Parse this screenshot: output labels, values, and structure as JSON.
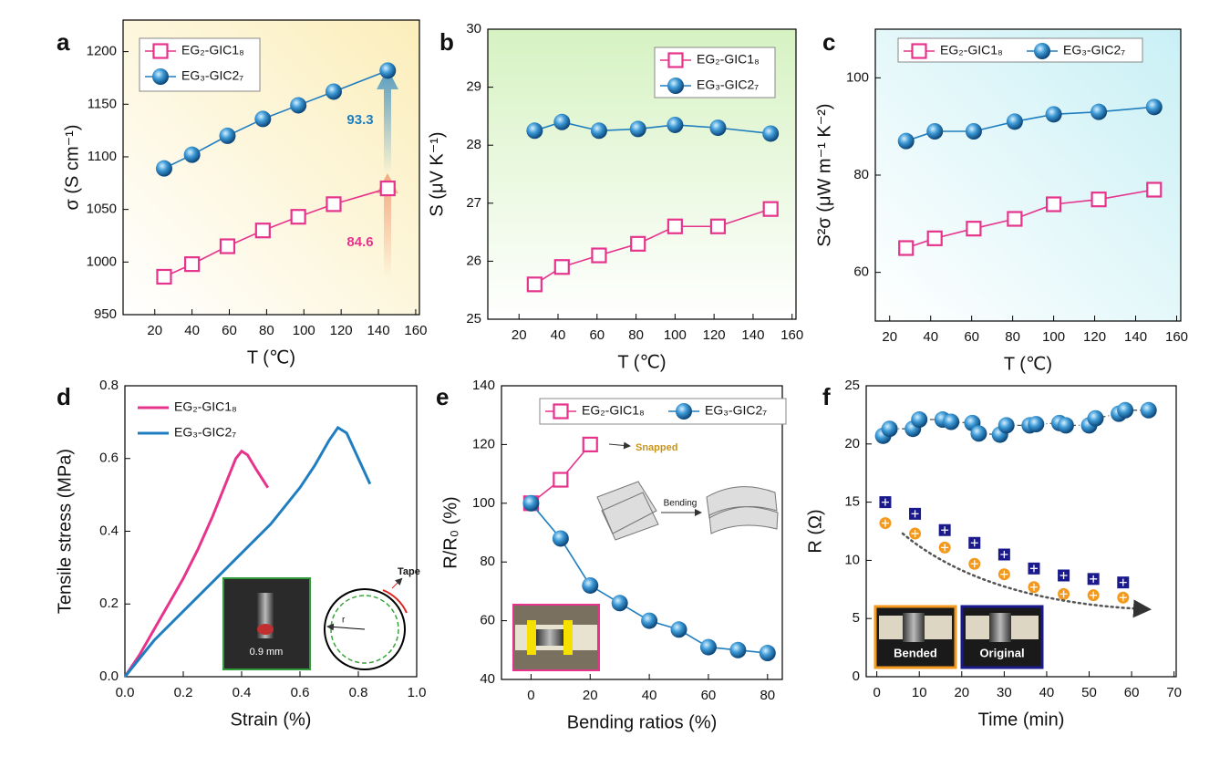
{
  "chart_data": [
    {
      "type": "line",
      "label": "a",
      "x_label": "T (℃)",
      "y_label": "σ (S cm⁻¹)",
      "x": [
        25,
        40,
        59,
        78,
        97,
        116,
        145
      ],
      "series": [
        {
          "name": "EG₂-GIC1₈",
          "color": "#e6338c",
          "marker": "square",
          "values": [
            986,
            998,
            1015,
            1030,
            1043,
            1055,
            1070
          ]
        },
        {
          "name": "EG₃-GIC2₇",
          "color": "#1f7ec0",
          "marker": "sphere",
          "values": [
            1089,
            1102,
            1120,
            1136,
            1149,
            1162,
            1182
          ]
        }
      ],
      "xlim": [
        3,
        162
      ],
      "xticks": [
        20,
        40,
        60,
        80,
        100,
        120,
        140,
        160
      ],
      "ylim": [
        950,
        1230
      ],
      "yticks": [
        950,
        1000,
        1050,
        1100,
        1150,
        1200
      ],
      "legend": "upper left",
      "legend_columns": 1,
      "annotations": [
        "93.3",
        "84.6"
      ]
    },
    {
      "type": "line",
      "label": "b",
      "x_label": "T (℃)",
      "y_label": "S (μV K⁻¹)",
      "x": [
        28,
        42,
        61,
        81,
        100,
        122,
        149
      ],
      "series": [
        {
          "name": "EG₂-GIC1₈",
          "color": "#e6338c",
          "marker": "square",
          "values": [
            25.6,
            25.9,
            26.1,
            26.3,
            26.6,
            26.6,
            26.9
          ]
        },
        {
          "name": "EG₃-GIC2₇",
          "color": "#1f7ec0",
          "marker": "sphere",
          "values": [
            28.25,
            28.4,
            28.25,
            28.28,
            28.35,
            28.3,
            28.2
          ]
        }
      ],
      "xlim": [
        4,
        162
      ],
      "xticks": [
        20,
        40,
        60,
        80,
        100,
        120,
        140,
        160
      ],
      "ylim": [
        25,
        30
      ],
      "yticks": [
        25,
        26,
        27,
        28,
        29,
        30
      ],
      "legend": "upper right",
      "legend_columns": 1
    },
    {
      "type": "line",
      "label": "c",
      "x_label": "T (℃)",
      "y_label": "S²σ (μW m⁻¹ K⁻²)",
      "x": [
        28,
        42,
        61,
        81,
        100,
        122,
        149
      ],
      "series": [
        {
          "name": "EG₂-GIC1₈",
          "color": "#e6338c",
          "marker": "square",
          "values": [
            65,
            67,
            69,
            71,
            74,
            75,
            77
          ]
        },
        {
          "name": "EG₃-GIC2₇",
          "color": "#1f7ec0",
          "marker": "sphere",
          "values": [
            87,
            89,
            89,
            91,
            92.5,
            93,
            94
          ]
        }
      ],
      "xlim": [
        13,
        162
      ],
      "xticks": [
        20,
        40,
        60,
        80,
        100,
        120,
        140,
        160
      ],
      "ylim": [
        50,
        110
      ],
      "yticks": [
        60,
        80,
        100
      ],
      "legend": "upper left",
      "legend_columns": 2
    },
    {
      "type": "line",
      "label": "d",
      "x_label": "Strain (%)",
      "y_label": "Tensile stress (MPa)",
      "series": [
        {
          "name": "EG₂-GIC1₈",
          "color": "#e6338c",
          "marker": "none",
          "x": [
            0,
            0.05,
            0.1,
            0.15,
            0.2,
            0.25,
            0.3,
            0.35,
            0.38,
            0.4,
            0.42,
            0.45,
            0.49
          ],
          "values": [
            0,
            0.06,
            0.13,
            0.2,
            0.27,
            0.35,
            0.44,
            0.54,
            0.6,
            0.62,
            0.61,
            0.57,
            0.52
          ]
        },
        {
          "name": "EG₃-GIC2₇",
          "color": "#1f7ec0",
          "marker": "none",
          "x": [
            0,
            0.1,
            0.2,
            0.3,
            0.4,
            0.5,
            0.6,
            0.65,
            0.7,
            0.73,
            0.76,
            0.8,
            0.84
          ],
          "values": [
            0,
            0.1,
            0.18,
            0.26,
            0.34,
            0.42,
            0.52,
            0.58,
            0.65,
            0.685,
            0.67,
            0.6,
            0.53
          ]
        }
      ],
      "xlim": [
        0,
        1
      ],
      "xticks": [
        {
          "value": 0,
          "label": "0.0"
        },
        0.2,
        0.4,
        0.6,
        0.8,
        {
          "value": 1,
          "label": "1.0"
        }
      ],
      "ylim": [
        0,
        0.8
      ],
      "yticks": [
        {
          "value": 0,
          "label": "0.0"
        },
        0.2,
        0.4,
        0.6,
        0.8
      ],
      "legend": "upper left",
      "legend_columns": 1,
      "annotations": [
        "0.9 mm",
        "Tape",
        "r"
      ]
    },
    {
      "type": "line",
      "label": "e",
      "x_label": "Bending ratios (%)",
      "y_label": "R/R₀ (%)",
      "series": [
        {
          "name": "EG₂-GIC1₈",
          "color": "#e6338c",
          "marker": "square",
          "x": [
            0,
            10,
            20
          ],
          "values": [
            100,
            108,
            120
          ]
        },
        {
          "name": "EG₃-GIC2₇",
          "color": "#1f7ec0",
          "marker": "sphere",
          "x": [
            0,
            10,
            20,
            30,
            40,
            50,
            60,
            70,
            80
          ],
          "values": [
            100,
            88,
            72,
            66,
            60,
            57,
            51,
            50,
            49
          ]
        }
      ],
      "xlim": [
        -10,
        85
      ],
      "xticks": [
        0,
        20,
        40,
        60,
        80
      ],
      "ylim": [
        40,
        140
      ],
      "yticks": [
        40,
        60,
        80,
        100,
        120,
        140
      ],
      "legend": "upper center",
      "legend_columns": 2,
      "annotations": [
        "Snapped",
        "Bending"
      ]
    },
    {
      "type": "scatter",
      "label": "f",
      "x_label": "Time (min)",
      "y_label": "R (Ω)",
      "series": [
        {
          "color": "#1f7ec0",
          "marker": "sphere",
          "line": "dotted",
          "x": [
            1.5,
            3,
            8.5,
            10,
            15.5,
            17.5,
            22.5,
            24,
            29,
            30.5,
            36,
            37.5,
            43,
            44.5,
            50,
            51.5,
            57,
            58.5,
            64
          ],
          "values": [
            20.7,
            21.3,
            21.3,
            22.1,
            22.1,
            21.9,
            21.8,
            20.9,
            20.8,
            21.6,
            21.6,
            21.7,
            21.8,
            21.6,
            21.6,
            22.2,
            22.6,
            22.9,
            22.9
          ]
        },
        {
          "name": "Original",
          "color": "#1a1a8c",
          "marker": "square-plus",
          "x": [
            2,
            9,
            16,
            23,
            30,
            37,
            44,
            51,
            58
          ],
          "values": [
            15,
            14,
            12.6,
            11.5,
            10.5,
            9.3,
            8.7,
            8.4,
            8.1
          ]
        },
        {
          "name": "Bended",
          "color": "#f39a1e",
          "marker": "circle-plus",
          "x": [
            2,
            9,
            16,
            23,
            30,
            37,
            44,
            51,
            58
          ],
          "values": [
            13.2,
            12.3,
            11.1,
            9.7,
            8.8,
            7.7,
            7.1,
            7,
            6.8
          ]
        }
      ],
      "xlim": [
        -2.5,
        70.5
      ],
      "xticks": [
        0,
        10,
        20,
        30,
        40,
        50,
        60,
        70
      ],
      "ylim": [
        0,
        25
      ],
      "yticks": [
        0,
        5,
        10,
        15,
        20,
        25
      ],
      "legend": "lower left"
    }
  ]
}
